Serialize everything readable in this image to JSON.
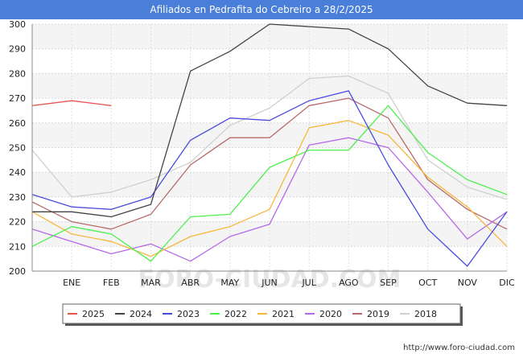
{
  "header": {
    "title": "Afiliados en Pedrafita do Cebreiro a 28/2/2025"
  },
  "footer": {
    "url": "http://www.foro-ciudad.com"
  },
  "watermark": "FORO-CIUDAD.COM",
  "chart_data": {
    "type": "line",
    "title": "Afiliados en Pedrafita do Cebreiro a 28/2/2025",
    "xlabel": "",
    "ylabel": "",
    "categories": [
      "DIC",
      "ENE",
      "FEB",
      "MAR",
      "ABR",
      "MAY",
      "JUN",
      "JUL",
      "AGO",
      "SEP",
      "OCT",
      "NOV",
      "DIC"
    ],
    "x_tick_labels": [
      "",
      "ENE",
      "FEB",
      "MAR",
      "ABR",
      "MAY",
      "JUN",
      "JUL",
      "AGO",
      "SEP",
      "OCT",
      "NOV",
      "DIC"
    ],
    "ylim": [
      200,
      300
    ],
    "yticks": [
      200,
      210,
      220,
      230,
      240,
      250,
      260,
      270,
      280,
      290,
      300
    ],
    "grid": true,
    "legend_position": "bottom",
    "series": [
      {
        "name": "2025",
        "color": "#e8524f",
        "values": [
          267,
          269,
          267,
          null,
          null,
          null,
          null,
          null,
          null,
          null,
          null,
          null,
          null
        ]
      },
      {
        "name": "2024",
        "color": "#444444",
        "values": [
          224,
          224,
          222,
          227,
          281,
          289,
          300,
          299,
          298,
          290,
          275,
          268,
          267
        ]
      },
      {
        "name": "2023",
        "color": "#4a4ae0",
        "values": [
          231,
          226,
          225,
          230,
          253,
          262,
          261,
          269,
          273,
          243,
          217,
          202,
          224
        ]
      },
      {
        "name": "2022",
        "color": "#4cf04c",
        "values": [
          210,
          218,
          215,
          204,
          222,
          223,
          242,
          249,
          249,
          267,
          248,
          237,
          231
        ]
      },
      {
        "name": "2021",
        "color": "#f7b73a",
        "values": [
          224,
          215,
          212,
          206,
          214,
          218,
          225,
          258,
          261,
          255,
          238,
          226,
          210
        ]
      },
      {
        "name": "2020",
        "color": "#b569e8",
        "values": [
          217,
          212,
          207,
          211,
          204,
          214,
          219,
          251,
          254,
          250,
          232,
          213,
          224
        ]
      },
      {
        "name": "2019",
        "color": "#b86a6a",
        "values": [
          228,
          220,
          217,
          223,
          243,
          254,
          254,
          267,
          270,
          262,
          237,
          225,
          217
        ]
      },
      {
        "name": "2018",
        "color": "#d0d0d0",
        "values": [
          249,
          230,
          232,
          237,
          244,
          259,
          266,
          278,
          279,
          272,
          245,
          234,
          229
        ]
      }
    ]
  }
}
